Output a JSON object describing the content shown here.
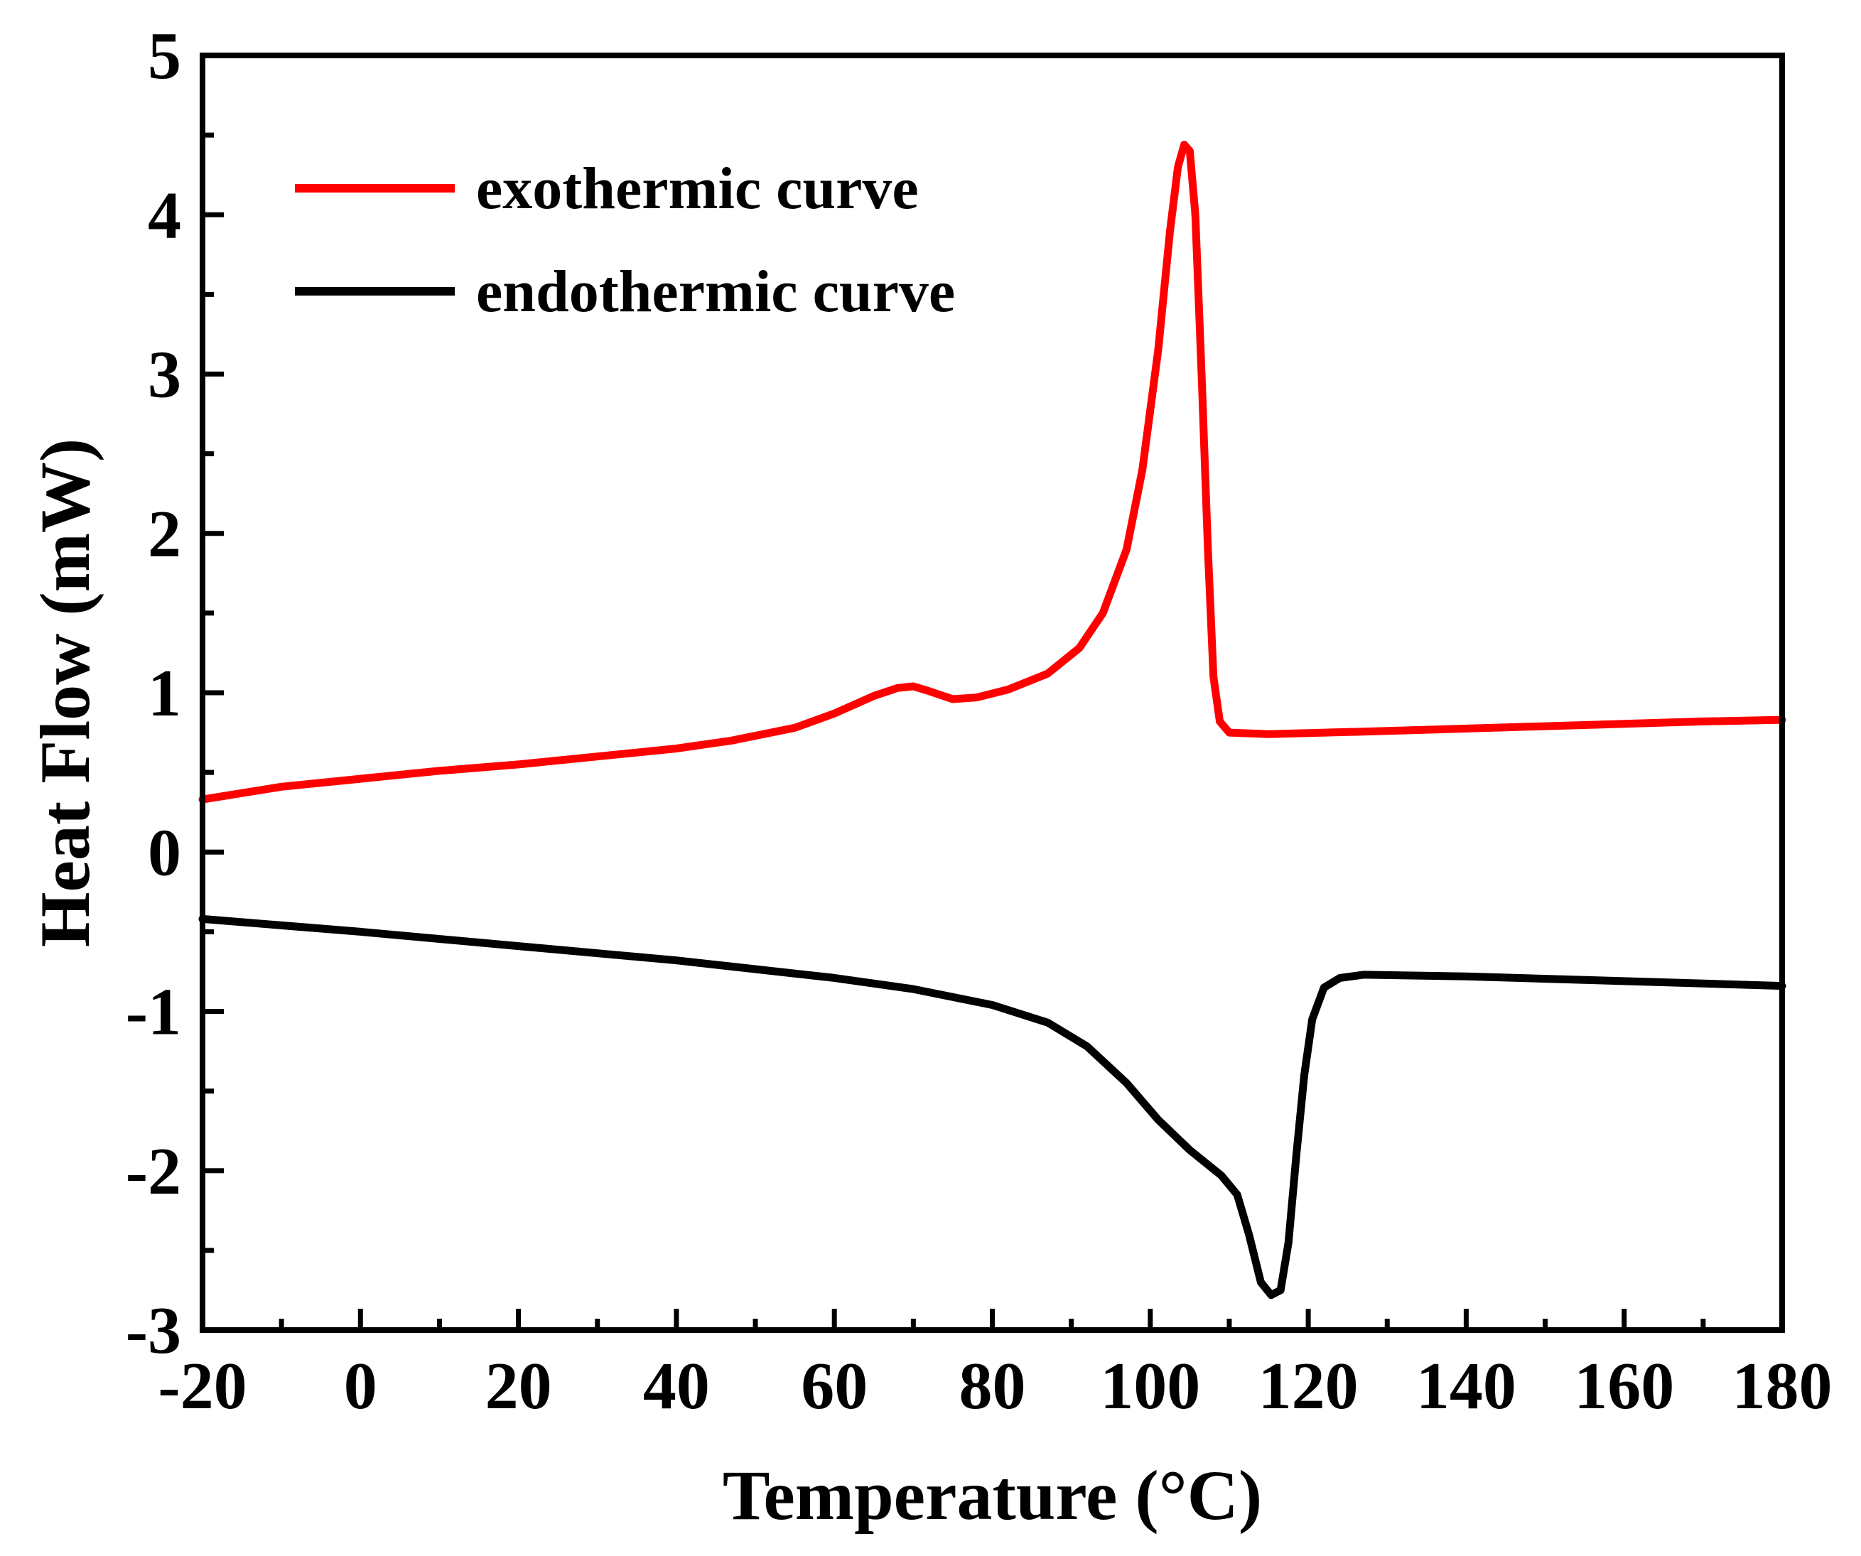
{
  "chart_data": {
    "type": "line",
    "title": "",
    "xlabel": "Temperature (°C)",
    "ylabel": "Heat Flow (mW)",
    "xlim": [
      -20,
      180
    ],
    "ylim": [
      -3,
      5
    ],
    "x_ticks": [
      -20,
      0,
      20,
      40,
      60,
      80,
      100,
      120,
      140,
      160,
      180
    ],
    "y_ticks": [
      5,
      4,
      3,
      2,
      1,
      0,
      -1,
      -2,
      -3
    ],
    "legend_position": "top-left",
    "grid": false,
    "series": [
      {
        "name": "exothermic curve",
        "color": "#ff0000",
        "points": [
          [
            -20,
            0.33
          ],
          [
            -10,
            0.41
          ],
          [
            0,
            0.46
          ],
          [
            10,
            0.51
          ],
          [
            20,
            0.55
          ],
          [
            30,
            0.6
          ],
          [
            40,
            0.65
          ],
          [
            47,
            0.7
          ],
          [
            55,
            0.78
          ],
          [
            60,
            0.87
          ],
          [
            65,
            0.98
          ],
          [
            68,
            1.03
          ],
          [
            70,
            1.04
          ],
          [
            72,
            1.01
          ],
          [
            75,
            0.96
          ],
          [
            78,
            0.97
          ],
          [
            82,
            1.02
          ],
          [
            87,
            1.12
          ],
          [
            91,
            1.28
          ],
          [
            94,
            1.5
          ],
          [
            97,
            1.9
          ],
          [
            99,
            2.4
          ],
          [
            101,
            3.15
          ],
          [
            102.5,
            3.9
          ],
          [
            103.5,
            4.3
          ],
          [
            104.3,
            4.44
          ],
          [
            105,
            4.4
          ],
          [
            105.7,
            4.0
          ],
          [
            106.5,
            3.0
          ],
          [
            107.3,
            1.9
          ],
          [
            108,
            1.1
          ],
          [
            108.8,
            0.82
          ],
          [
            110,
            0.75
          ],
          [
            115,
            0.74
          ],
          [
            130,
            0.76
          ],
          [
            150,
            0.79
          ],
          [
            170,
            0.82
          ],
          [
            180,
            0.83
          ]
        ]
      },
      {
        "name": "endothermic curve",
        "color": "#000000",
        "points": [
          [
            -20,
            -0.42
          ],
          [
            0,
            -0.5
          ],
          [
            20,
            -0.59
          ],
          [
            40,
            -0.68
          ],
          [
            60,
            -0.79
          ],
          [
            70,
            -0.86
          ],
          [
            80,
            -0.96
          ],
          [
            87,
            -1.07
          ],
          [
            92,
            -1.22
          ],
          [
            97,
            -1.45
          ],
          [
            101,
            -1.68
          ],
          [
            105,
            -1.87
          ],
          [
            109,
            -2.03
          ],
          [
            111,
            -2.15
          ],
          [
            112.5,
            -2.4
          ],
          [
            114,
            -2.7
          ],
          [
            115.3,
            -2.78
          ],
          [
            116.5,
            -2.75
          ],
          [
            117.5,
            -2.45
          ],
          [
            118.5,
            -1.9
          ],
          [
            119.5,
            -1.4
          ],
          [
            120.5,
            -1.05
          ],
          [
            122,
            -0.85
          ],
          [
            124,
            -0.79
          ],
          [
            127,
            -0.77
          ],
          [
            140,
            -0.78
          ],
          [
            160,
            -0.81
          ],
          [
            180,
            -0.84
          ]
        ]
      }
    ]
  }
}
